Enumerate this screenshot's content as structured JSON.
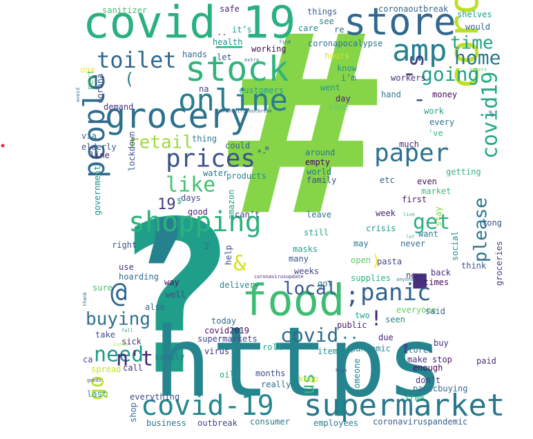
{
  "words": [
    {
      "text": "#",
      "color": "#86d549",
      "bold": true
    },
    {
      "text": "?",
      "color": "#1f9e89",
      "bold": true
    },
    {
      "text": "https",
      "color": "#25858e",
      "bold": false
    },
    {
      "text": ",",
      "color": "#26818e",
      "bold": true
    },
    {
      "text": ".",
      "color": "#472f7d",
      "bold": true
    },
    {
      "text": "covid_19",
      "color": "#2ab07f",
      "bold": false
    },
    {
      "text": "store",
      "color": "#31688e",
      "bold": false
    },
    {
      "text": "coronavirus",
      "color": "#bddf26",
      "bold": false
    },
    {
      "text": "grocery",
      "color": "#2c728e",
      "bold": false
    },
    {
      "text": "stock",
      "color": "#2fb47c",
      "bold": false
    },
    {
      "text": "online",
      "color": "#287d8e",
      "bold": false
    },
    {
      "text": "food",
      "color": "#3fbc73",
      "bold": false
    },
    {
      "text": "amp",
      "color": "#26828e",
      "bold": false
    },
    {
      "text": "people",
      "color": "#306a8e",
      "bold": false
    },
    {
      "text": "shopping",
      "color": "#2db27d",
      "bold": false
    },
    {
      "text": "supermarket",
      "color": "#2a788e",
      "bold": false
    },
    {
      "text": "covid-19",
      "color": "#24868e",
      "bold": false
    },
    {
      "text": "prices",
      "color": "#3b528b",
      "bold": false
    },
    {
      "text": "paper",
      "color": "#2d718e",
      "bold": false
    },
    {
      "text": "panic",
      "color": "#33638d",
      "bold": false
    },
    {
      "text": "covid19",
      "color": "#22a884",
      "bold": false
    },
    {
      "text": "toilet",
      "color": "#31678e",
      "bold": false
    },
    {
      "text": "home",
      "color": "#2a768e",
      "bold": false
    },
    {
      "text": "time",
      "color": "#20a386",
      "bold": false
    },
    {
      "text": "going",
      "color": "#1fa088",
      "bold": false
    },
    {
      "text": "retail",
      "color": "#9dd93b",
      "bold": false
    },
    {
      "text": "like",
      "color": "#46c06f",
      "bold": false
    },
    {
      "text": "get",
      "color": "#29af7f",
      "bold": false
    },
    {
      "text": "need",
      "color": "#1f9a8a",
      "bold": false
    },
    {
      "text": "buying",
      "color": "#2e6f8e",
      "bold": false
    },
    {
      "text": "local",
      "color": "#39558c",
      "bold": false
    },
    {
      "text": "please",
      "color": "#2a768e",
      "bold": false
    },
    {
      "text": "n't",
      "color": "#482576",
      "bold": false
    },
    {
      "text": "covid",
      "color": "#30698e",
      "bold": false
    },
    {
      "text": "@",
      "color": "#31688e",
      "bold": false
    },
    {
      "text": "&",
      "color": "#d2e21b",
      "bold": false
    },
    {
      "text": "-",
      "color": "#3b528b",
      "bold": false
    },
    {
      "text": "go",
      "color": "#b5de2b",
      "bold": false
    },
    {
      "text": "us",
      "color": "#37b878",
      "bold": false
    },
    {
      "text": "'s",
      "color": "#424086",
      "bold": false
    },
    {
      "text": "'",
      "color": "#3e4a89",
      "bold": false
    },
    {
      "text": ";",
      "color": "#3b528b",
      "bold": false
    },
    {
      "text": "!",
      "color": "#482173",
      "bold": false
    },
    {
      "text": "...",
      "color": "#26818e",
      "bold": false
    },
    {
      "text": "(",
      "color": "#25838e",
      "bold": false
    },
    {
      "text": ")",
      "color": "#fde725",
      "bold": false
    },
    {
      "text": "19",
      "color": "#443a83",
      "bold": false
    },
    {
      "text": "$",
      "color": "#1fa088",
      "bold": false
    },
    {
      "text": "sanitizer",
      "color": "#3fbc73",
      "bold": false
    },
    {
      "text": "safe",
      "color": "#482878",
      "bold": false
    },
    {
      "text": "things",
      "color": "#38598c",
      "bold": false
    },
    {
      "text": "coronaoutbreak",
      "color": "#31688e",
      "bold": false
    },
    {
      "text": "shelves",
      "color": "#1e9c89",
      "bold": false
    },
    {
      "text": "would",
      "color": "#33638d",
      "bold": false
    },
    {
      "text": "see",
      "color": "#26818e",
      "bold": false
    },
    {
      "text": "care",
      "color": "#25858e",
      "bold": false
    },
    {
      "text": "re",
      "color": "#2d718e",
      "bold": false
    },
    {
      "text": "..",
      "color": "#46337f",
      "bold": false
    },
    {
      "text": "it’s",
      "color": "#1f9e89",
      "bold": false
    },
    {
      "text": "health",
      "color": "#21908d",
      "bold": false
    },
    {
      "text": "coronapocalypse",
      "color": "#2b748e",
      "bold": false
    },
    {
      "text": "working",
      "color": "#460a5d",
      "bold": false
    },
    {
      "text": "let",
      "color": "#3b528b",
      "bold": false
    },
    {
      "text": "hands",
      "color": "#2f6c8e",
      "bold": false
    },
    {
      "text": "extra",
      "color": "#355f8d",
      "bold": false
    },
    {
      "text": "find",
      "color": "#2f6b8e",
      "bold": false
    },
    {
      "text": "hours",
      "color": "#dfe318",
      "bold": false
    },
    {
      "text": "know",
      "color": "#1f948c",
      "bold": false
    },
    {
      "text": "i’m",
      "color": "#2a788e",
      "bold": false
    },
    {
      "text": "went",
      "color": "#1f968b",
      "bold": false
    },
    {
      "text": "workers",
      "color": "#472c7a",
      "bold": false
    },
    {
      "text": "others",
      "color": "#56c667",
      "bold": false
    },
    {
      "text": "one",
      "color": "#fde725",
      "bold": false
    },
    {
      "text": "next",
      "color": "#46c06f",
      "bold": false
    },
    {
      "text": "avoid",
      "color": "#31688e",
      "bold": false
    },
    {
      "text": "corona",
      "color": "#3d4e8a",
      "bold": false
    },
    {
      "text": "na",
      "color": "#443983",
      "bold": false
    },
    {
      "text": "customers",
      "color": "#1fa187",
      "bold": false
    },
    {
      "text": "hand",
      "color": "#2a788e",
      "bold": false
    },
    {
      "text": "money",
      "color": "#46075a",
      "bold": false
    },
    {
      "text": "demand",
      "color": "#453581",
      "bold": false
    },
    {
      "text": "coronavirusoutbreak",
      "color": "#375b8d",
      "bold": false
    },
    {
      "text": "day",
      "color": "#481a6c",
      "bold": false
    },
    {
      "text": "come",
      "color": "#63cb5f",
      "bold": false
    },
    {
      "text": "work",
      "color": "#1fa088",
      "bold": false
    },
    {
      "text": "%",
      "color": "#2c738e",
      "bold": false
    },
    {
      "text": "every",
      "color": "#2d708e",
      "bold": false
    },
    {
      "text": "'ve",
      "color": "#38b977",
      "bold": false
    },
    {
      "text": "via",
      "color": "#2f6c8e",
      "bold": false
    },
    {
      "text": "thing",
      "color": "#297a8e",
      "bold": false
    },
    {
      "text": "elderly",
      "color": "#3a538b",
      "bold": false
    },
    {
      "text": "could",
      "color": "#355e8d",
      "bold": false
    },
    {
      "text": "*-",
      "color": "#3b528b",
      "bold": false
    },
    {
      "text": "m",
      "color": "#443983",
      "bold": false
    },
    {
      "text": "much",
      "color": "#482475",
      "bold": false
    },
    {
      "text": "line",
      "color": "#481769",
      "bold": false
    },
    {
      "text": "around",
      "color": "#2d718e",
      "bold": false
    },
    {
      "text": "empty",
      "color": "#440154",
      "bold": false
    },
    {
      "text": "world",
      "color": "#2c728e",
      "bold": false
    },
    {
      "text": "family",
      "color": "#3b528b",
      "bold": false
    },
    {
      "text": "getting",
      "color": "#31b57b",
      "bold": false
    },
    {
      "text": "lockdown",
      "color": "#3b528b",
      "bold": false
    },
    {
      "text": "government",
      "color": "#1f948c",
      "bold": false
    },
    {
      "text": "water",
      "color": "#2b748e",
      "bold": false
    },
    {
      "text": "products",
      "color": "#23888e",
      "bold": false
    },
    {
      "text": "etc",
      "color": "#38588c",
      "bold": false
    },
    {
      "text": "even",
      "color": "#470d60",
      "bold": false
    },
    {
      "text": "market",
      "color": "#3dbc74",
      "bold": false
    },
    {
      "text": "first",
      "color": "#481a6c",
      "bold": false
    },
    {
      "text": "days",
      "color": "#3f4788",
      "bold": false
    },
    {
      "text": "amazon",
      "color": "#1fa287",
      "bold": false
    },
    {
      "text": "good",
      "color": "#482173",
      "bold": false
    },
    {
      "text": "can’t",
      "color": "#453781",
      "bold": false
    },
    {
      "text": "leave",
      "color": "#2c728e",
      "bold": false
    },
    {
      "text": "week",
      "color": "#481f70",
      "bold": false
    },
    {
      "text": "stay",
      "color": "#85d54a",
      "bold": false
    },
    {
      "text": "live",
      "color": "#2cb17e",
      "bold": false
    },
    {
      "text": "long",
      "color": "#3d4e8a",
      "bold": false
    },
    {
      "text": "lot",
      "color": "#3fbc73",
      "bold": false
    },
    {
      "text": "want",
      "color": "#287c8e",
      "bold": false
    },
    {
      "text": "still",
      "color": "#1fa088",
      "bold": false
    },
    {
      "text": "crisis",
      "color": "#1f998a",
      "bold": false
    },
    {
      "text": "social",
      "color": "#1f948c",
      "bold": false
    },
    {
      "text": "right",
      "color": "#3b528b",
      "bold": false
    },
    {
      "text": "2",
      "color": "#31688e",
      "bold": false
    },
    {
      "text": "help",
      "color": "#3e4989",
      "bold": false
    },
    {
      "text": "masks",
      "color": "#1fa188",
      "bold": false
    },
    {
      "text": "may",
      "color": "#2c738e",
      "bold": false
    },
    {
      "text": "never",
      "color": "#2e6e8e",
      "bold": false
    },
    {
      "text": "groceries",
      "color": "#443983",
      "bold": false
    },
    {
      "text": "use",
      "color": "#472c7a",
      "bold": false
    },
    {
      "text": "many",
      "color": "#38598c",
      "bold": false
    },
    {
      "text": "pasta",
      "color": "#3f4788",
      "bold": false
    },
    {
      "text": "open",
      "color": "#5ac864",
      "bold": false
    },
    {
      "text": "think",
      "color": "#3b528b",
      "bold": false
    },
    {
      "text": "hoarding",
      "color": "#2e6e8e",
      "bold": false
    },
    {
      "text": "weeks",
      "color": "#414287",
      "bold": false
    },
    {
      "text": "coronavirusupdate",
      "color": "#472d7b",
      "bold": false
    },
    {
      "text": "supplies",
      "color": "#2ab07f",
      "bold": false
    },
    {
      "text": "anyone",
      "color": "#29798e",
      "bold": false
    },
    {
      "text": "new",
      "color": "#482979",
      "bold": false
    },
    {
      "text": "back",
      "color": "#482979",
      "bold": false
    },
    {
      "text": "way",
      "color": "#481467",
      "bold": false
    },
    {
      "text": "sure",
      "color": "#46c06f",
      "bold": false
    },
    {
      "text": "delivery",
      "color": "#24868e",
      "bold": false
    },
    {
      "text": "got",
      "color": "#287d8e",
      "bold": false
    },
    {
      "text": "times",
      "color": "#450559",
      "bold": false
    },
    {
      "text": "well",
      "color": "#3f4889",
      "bold": false
    },
    {
      "text": "thank",
      "color": "#31688e",
      "bold": false
    },
    {
      "text": "also",
      "color": "#34618d",
      "bold": false
    },
    {
      "text": "everyone",
      "color": "#65cb5e",
      "bold": false
    },
    {
      "text": "said",
      "color": "#33638d",
      "bold": false
    },
    {
      "text": "two",
      "color": "#21a685",
      "bold": false
    },
    {
      "text": "seen",
      "color": "#26818e",
      "bold": false
    },
    {
      "text": "today",
      "color": "#2e6e8e",
      "bold": false
    },
    {
      "text": "public",
      "color": "#481769",
      "bold": false
    },
    {
      "text": "covid2019",
      "color": "#460b5e",
      "bold": false
    },
    {
      "text": "take",
      "color": "#3e4a89",
      "bold": false
    },
    {
      "text": "full",
      "color": "#1f958b",
      "bold": false
    },
    {
      "text": "supermarkets",
      "color": "#424186",
      "bold": false
    },
    {
      "text": "due",
      "color": "#482173",
      "bold": false
    },
    {
      "text": "sick",
      "color": "#482979",
      "bold": false
    },
    {
      "text": "roll",
      "color": "#22a785",
      "bold": false
    },
    {
      "text": "buy",
      "color": "#46307e",
      "bold": false
    },
    {
      "text": "since",
      "color": "#b8de29",
      "bold": false
    },
    {
      "text": "pandemic",
      "color": "#26828e",
      "bold": false
    },
    {
      "text": "stores",
      "color": "#2c718e",
      "bold": false
    },
    {
      "text": "items",
      "color": "#21908d",
      "bold": false
    },
    {
      "text": "make",
      "color": "#46337f",
      "bold": false
    },
    {
      "text": "stop",
      "color": "#471365",
      "bold": false
    },
    {
      "text": "paid",
      "color": "#472f7d",
      "bold": false
    },
    {
      "text": "ca",
      "color": "#3e4989",
      "bold": false
    },
    {
      "text": "supply",
      "color": "#2e6f8e",
      "bold": false
    },
    {
      "text": "virus",
      "color": "#472c7a",
      "bold": false
    },
    {
      "text": "enough",
      "color": "#450457",
      "bold": false
    },
    {
      "text": "spread",
      "color": "#c8e020",
      "bold": false
    },
    {
      "text": "call",
      "color": "#472a7a",
      "bold": false
    },
    {
      "text": "oil",
      "color": "#1fa188",
      "bold": false
    },
    {
      "text": "high",
      "color": "#3a548c",
      "bold": false
    },
    {
      "text": "someone",
      "color": "#24878e",
      "bold": false
    },
    {
      "text": "don’t",
      "color": "#46327e",
      "bold": false
    },
    {
      "text": "goods",
      "color": "#404688",
      "bold": false
    },
    {
      "text": "months",
      "color": "#3e4a89",
      "bold": false
    },
    {
      "text": "keep",
      "color": "#cae11f",
      "bold": false
    },
    {
      "text": "panicbuying",
      "color": "#306a8e",
      "bold": false
    },
    {
      "text": "really",
      "color": "#2e6d8e",
      "bold": false
    },
    {
      "text": "last",
      "color": "#1f978b",
      "bold": false
    },
    {
      "text": "everything",
      "color": "#3e4c8a",
      "bold": false
    },
    {
      "text": "free",
      "color": "#2ab07f",
      "bold": false
    },
    {
      "text": "shop",
      "color": "#2b748e",
      "bold": false
    },
    {
      "text": "business",
      "color": "#2c738e",
      "bold": false
    },
    {
      "text": "outbreak",
      "color": "#3f4788",
      "bold": false
    },
    {
      "text": "consumer",
      "color": "#2a778e",
      "bold": false
    },
    {
      "text": "employees",
      "color": "#297b8e",
      "bold": false
    },
    {
      "text": "coronaviruspandemic",
      "color": "#34608d",
      "bold": false
    }
  ]
}
